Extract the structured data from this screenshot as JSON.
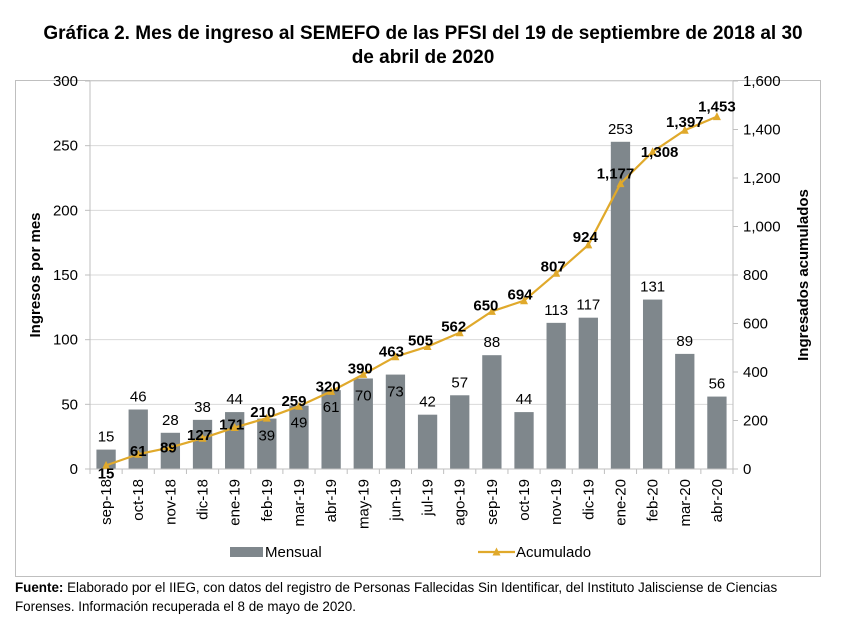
{
  "chart_data": {
    "type": "bar",
    "title": "Gráfica 2. Mes de ingreso al SEMEFO de las PFSI del 19 de septiembre de 2018 al 30 de abril de 2020",
    "title_lines": [
      "Gráfica 2. Mes de ingreso al SEMEFO de las PFSI del 19 de septiembre de 2018 al 30",
      "de abril de 2020"
    ],
    "categories": [
      "sep-18",
      "oct-18",
      "nov-18",
      "dic-18",
      "ene-19",
      "feb-19",
      "mar-19",
      "abr-19",
      "may-19",
      "jun-19",
      "jul-19",
      "ago-19",
      "sep-19",
      "oct-19",
      "nov-19",
      "dic-19",
      "ene-20",
      "feb-20",
      "mar-20",
      "abr-20"
    ],
    "series": [
      {
        "name": "Mensual",
        "type": "bar",
        "axis": "left",
        "color": "#7f878c",
        "values": [
          15,
          46,
          28,
          38,
          44,
          39,
          49,
          61,
          70,
          73,
          42,
          57,
          88,
          44,
          113,
          117,
          253,
          131,
          89,
          56
        ]
      },
      {
        "name": "Acumulado",
        "type": "line",
        "axis": "right",
        "color": "#e0a92b",
        "marker": "triangle",
        "values": [
          15,
          61,
          89,
          127,
          171,
          210,
          259,
          320,
          390,
          463,
          505,
          562,
          650,
          694,
          807,
          924,
          1177,
          1308,
          1397,
          1453
        ],
        "labels": [
          "15",
          "61",
          "89",
          "127",
          "171",
          "210",
          "259",
          "320",
          "390",
          "463",
          "505",
          "562",
          "650",
          "694",
          "807",
          "924",
          "1,177",
          "1,308",
          "1,397",
          "1,453"
        ]
      }
    ],
    "xlabel": "",
    "ylabel": "Ingresos por mes",
    "y2label": "Ingresados acumulados",
    "ylim": [
      0,
      300
    ],
    "y2lim": [
      0,
      1600
    ],
    "yticks": [
      "0",
      "50",
      "100",
      "150",
      "200",
      "250",
      "300"
    ],
    "y2ticks": [
      "0",
      "200",
      "400",
      "600",
      "800",
      "1,000",
      "1,200",
      "1,400",
      "1,600"
    ],
    "ytick_values": [
      0,
      50,
      100,
      150,
      200,
      250,
      300
    ],
    "y2tick_values": [
      0,
      200,
      400,
      600,
      800,
      1000,
      1200,
      1400,
      1600
    ],
    "grid": true,
    "legend": {
      "placement": "bottom",
      "entries": [
        "Mensual",
        "Acumulado"
      ]
    }
  },
  "source": {
    "label": "Fuente:",
    "text": "Elaborado por el IIEG, con datos del registro de Personas Fallecidas Sin Identificar, del Instituto Jalisciense de Ciencias Forenses. Información recuperada el 8 de mayo de 2020."
  }
}
